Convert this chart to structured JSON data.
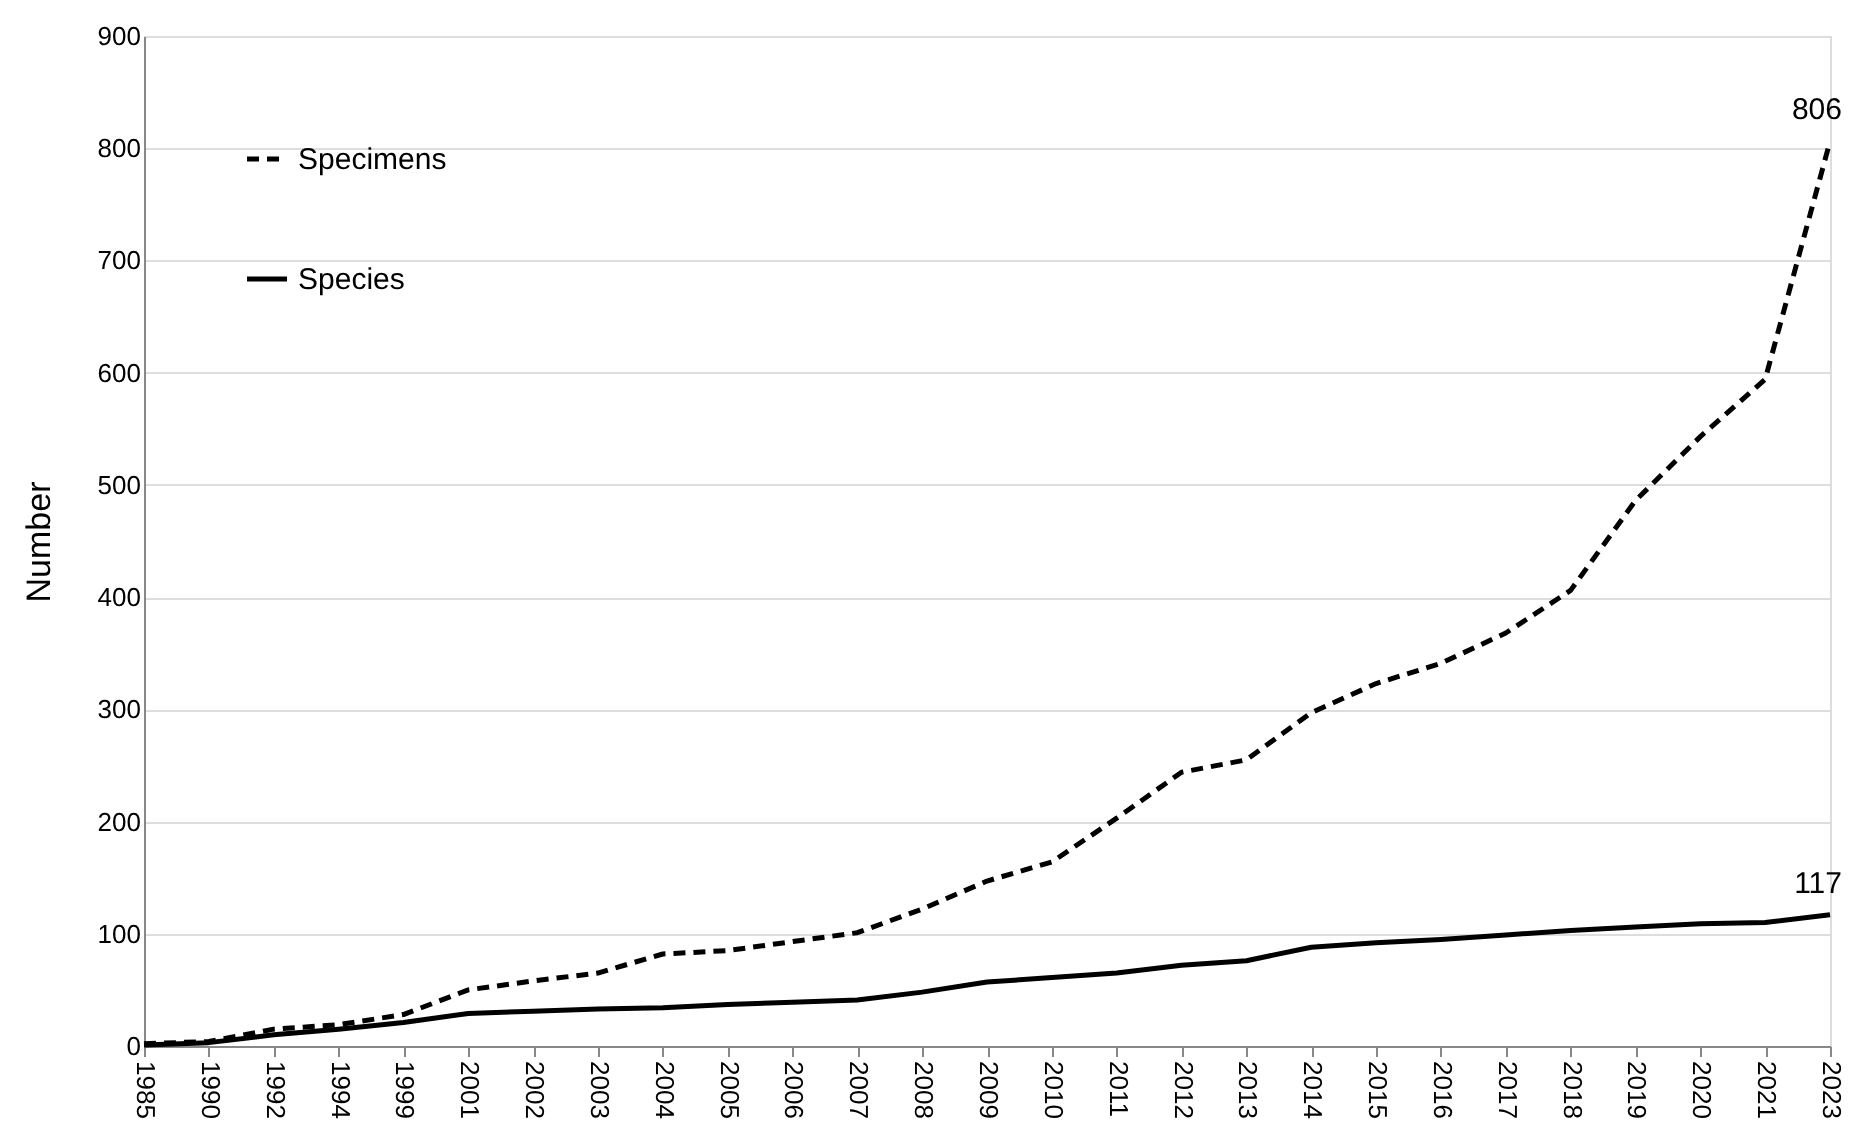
{
  "chart_data": {
    "type": "line",
    "ylabel": "Number",
    "categories": [
      "1985",
      "1990",
      "1992",
      "1994",
      "1999",
      "2001",
      "2002",
      "2003",
      "2004",
      "2005",
      "2006",
      "2007",
      "2008",
      "2009",
      "2010",
      "2011",
      "2012",
      "2013",
      "2014",
      "2015",
      "2016",
      "2017",
      "2018",
      "2019",
      "2020",
      "2021",
      "2023"
    ],
    "series": [
      {
        "name": "Specimens",
        "color": "#000000",
        "line_style": "dashed",
        "values": [
          2,
          4,
          15,
          19,
          28,
          50,
          58,
          65,
          82,
          85,
          93,
          101,
          122,
          147,
          164,
          203,
          244,
          255,
          297,
          323,
          341,
          368,
          406,
          486,
          543,
          594,
          806
        ]
      },
      {
        "name": "Species",
        "color": "#000000",
        "line_style": "solid",
        "values": [
          1,
          3,
          10,
          15,
          21,
          29,
          31,
          33,
          34,
          37,
          39,
          41,
          48,
          57,
          61,
          65,
          72,
          76,
          88,
          92,
          95,
          99,
          103,
          106,
          109,
          110,
          117
        ]
      }
    ],
    "ylim": [
      0,
      900
    ],
    "yticks": [
      0,
      100,
      200,
      300,
      400,
      500,
      600,
      700,
      800,
      900
    ],
    "grid": "y",
    "legend": "top left",
    "marker": "none",
    "annotations": [
      {
        "text": "806",
        "x": "2023",
        "y": 806
      },
      {
        "text": "117",
        "x": "2023",
        "y": 117
      }
    ]
  }
}
